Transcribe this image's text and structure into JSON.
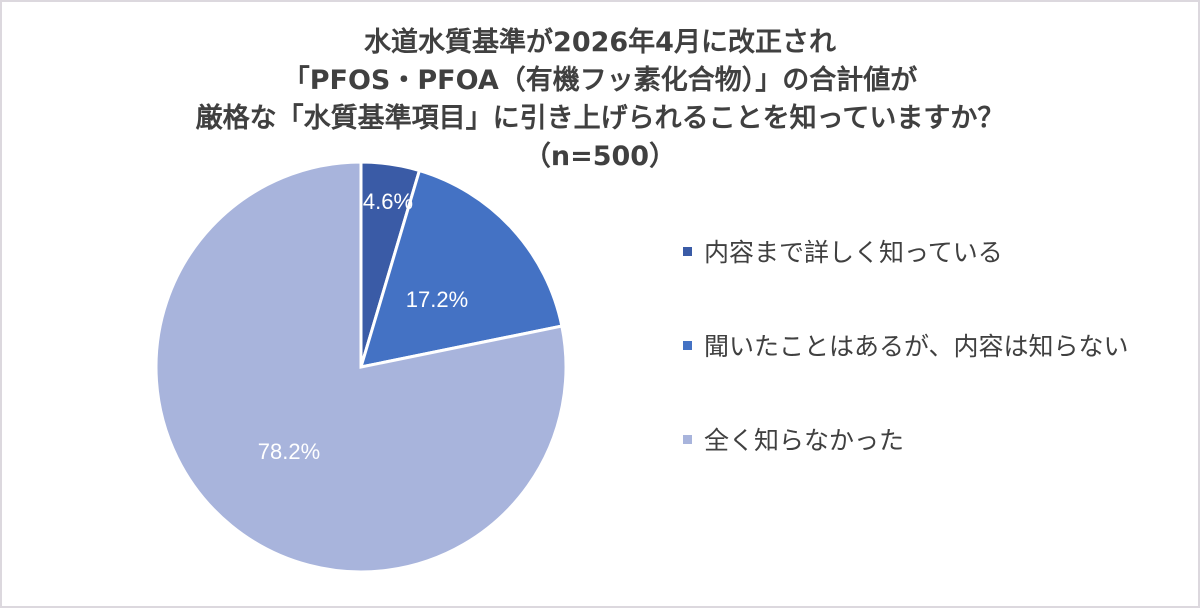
{
  "chart_data": {
    "type": "pie",
    "title": "水道水質基準が2026年4月に改正され「PFOS・PFOA（有機フッ素化合物）」の合計値が厳格な「水質基準項目」に引き上げられることを知っていますか？（n=500）",
    "title_lines": [
      "水道水質基準が2026年4月に改正され",
      "「PFOS・PFOA（有機フッ素化合物）」の合計値が",
      "厳格な「水質基準項目」に引き上げられることを知っていますか？",
      "（n=500）"
    ],
    "sample_size": "n=500",
    "categories": [
      "内容まで詳しく知っている",
      "聞いたことはあるが、内容は知らない",
      "全く知らなかった"
    ],
    "values": [
      4.6,
      17.2,
      78.2
    ],
    "value_labels": [
      "4.6%",
      "17.2%",
      "78.2%"
    ],
    "colors": [
      "#3a5ba6",
      "#4472c4",
      "#a8b4dc"
    ],
    "legend_position": "right",
    "unit": "%"
  }
}
